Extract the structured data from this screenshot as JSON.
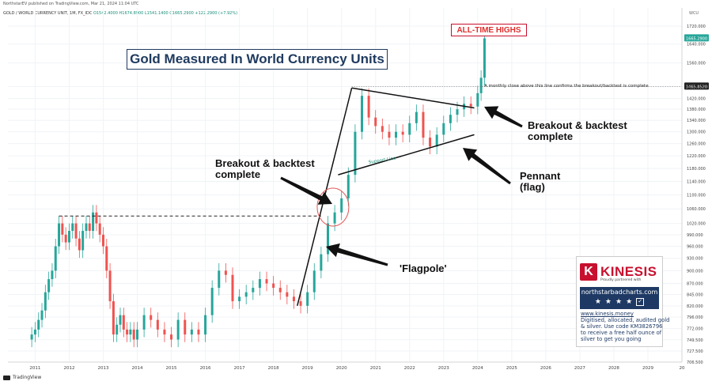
{
  "header": {
    "published": "NorthstarEV published on TradingView.com, Mar 21, 2024 11:04 UTC",
    "symbol": "GOLD / WORLD CURRENCY UNIT, 1M, FX_IDC",
    "ohlc": "O1542.4000 H1674.8900 L1541.1400 C1665.2900 +122.2900 (+7.92%)",
    "unit": "WCU"
  },
  "footer": {
    "brand": "TradingView"
  },
  "title": "Gold Measured In World Currency Units",
  "ath_label": "ALL-TIME HIGHS",
  "monthly_note": "A monthly close above this line confirms the breakout/backtest is complete",
  "support_label": "Support Line",
  "annotations": {
    "breakout1": [
      "Breakout & backtest",
      "complete"
    ],
    "breakout2": [
      "Breakout & backtest",
      "complete"
    ],
    "pennant": [
      "Pennant",
      "(flag)"
    ],
    "flagpole": "'Flagpole'"
  },
  "price_tags": {
    "current": "1665.2900",
    "level": "1465.8520"
  },
  "colors": {
    "up": "#26a69a",
    "down": "#ef5350",
    "accent": "#c8102e",
    "navy": "#1f3a5f"
  },
  "kinesis": {
    "logo_letter": "K",
    "logo_text": "KINESIS",
    "partner": "Proudly partnered with",
    "site": "northstarbadcharts.com",
    "stars": [
      "★",
      "★",
      "★",
      "★"
    ],
    "check": "✓",
    "link": "www.kinesis.money",
    "lines": [
      "Digitised, allocated, audited gold",
      "& silver. Use code KM3826796",
      "to receive a free half ounce of",
      "silver to get you going"
    ]
  },
  "chart_data": {
    "type": "candlestick",
    "title": "Gold Measured In World Currency Units",
    "x_ticks": [
      "2011",
      "2012",
      "2013",
      "2014",
      "2015",
      "2016",
      "2017",
      "2018",
      "2019",
      "2020",
      "2021",
      "2022",
      "2023",
      "2024",
      "2025",
      "2026",
      "2027",
      "2028",
      "2029",
      "20"
    ],
    "y_ticks": [
      "1720.000",
      "1640.000",
      "1560.000",
      "1465.8520",
      "1420.000",
      "1380.000",
      "1340.000",
      "1300.000",
      "1260.000",
      "1220.000",
      "1180.000",
      "1140.000",
      "1100.000",
      "1060.000",
      "1020.000",
      "990.000",
      "960.000",
      "930.000",
      "900.000",
      "870.000",
      "845.000",
      "820.000",
      "796.000",
      "772.000",
      "749.500",
      "727.500",
      "706.500"
    ],
    "ylim": [
      706.5,
      1760
    ],
    "series": [
      {
        "x": [
          2010.9,
          2011.0,
          2011.1,
          2011.2,
          2011.3,
          2011.4,
          2011.5,
          2011.6,
          2011.7,
          2011.8,
          2011.9,
          2012.0,
          2012.1,
          2012.2,
          2012.3,
          2012.4,
          2012.5,
          2012.6,
          2012.7,
          2012.8,
          2012.9,
          2013.0,
          2013.1,
          2013.2,
          2013.3,
          2013.4,
          2013.5,
          2013.6,
          2013.7,
          2013.8,
          2013.9,
          2014.0,
          2014.2,
          2014.4,
          2014.6,
          2014.8,
          2015.0,
          2015.2,
          2015.4,
          2015.6,
          2015.8,
          2016.0,
          2016.2,
          2016.4,
          2016.6,
          2016.8,
          2017.0,
          2017.2,
          2017.4,
          2017.6,
          2017.8,
          2018.0,
          2018.2,
          2018.4,
          2018.6,
          2018.8,
          2019.0,
          2019.2,
          2019.4,
          2019.6,
          2019.8,
          2020.0,
          2020.2,
          2020.4,
          2020.6,
          2020.8,
          2021.0,
          2021.2,
          2021.4,
          2021.6,
          2021.8,
          2022.0,
          2022.2,
          2022.4,
          2022.6,
          2022.8,
          2023.0,
          2023.2,
          2023.4,
          2023.6,
          2023.8,
          2024.0,
          2024.1,
          2024.2
        ],
        "close": [
          760,
          770,
          790,
          810,
          850,
          880,
          900,
          960,
          1020,
          990,
          970,
          1000,
          1020,
          980,
          950,
          1000,
          1020,
          1000,
          1050,
          1020,
          990,
          960,
          900,
          830,
          760,
          780,
          800,
          770,
          760,
          770,
          750,
          770,
          800,
          790,
          770,
          760,
          750,
          790,
          760,
          770,
          760,
          800,
          860,
          900,
          890,
          830,
          840,
          850,
          860,
          880,
          870,
          860,
          850,
          840,
          830,
          820,
          850,
          900,
          940,
          1020,
          1050,
          1090,
          1160,
          1300,
          1430,
          1350,
          1320,
          1300,
          1280,
          1300,
          1290,
          1330,
          1370,
          1280,
          1250,
          1290,
          1330,
          1360,
          1380,
          1400,
          1390,
          1440,
          1500,
          1665
        ],
        "name": ""
      }
    ]
  }
}
